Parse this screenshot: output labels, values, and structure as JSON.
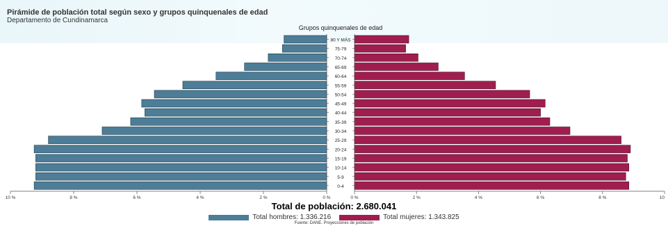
{
  "title": "Pirámide de población total según sexo y grupos quinquenales de edad",
  "subtitle": "Departamento de Cundinamarca",
  "total_label": "Total de población: 2.680.041",
  "legend": {
    "men": "Total hombres: 1.336.216",
    "women": "Total mujeres: 1.343.825"
  },
  "source": "Fuente: DANE. Proyecciones de población",
  "colors": {
    "men": "#4d7d97",
    "women": "#a01e4f"
  },
  "chart_data": {
    "type": "bar",
    "orientation": "horizontal-pyramid",
    "category_axis_title": "Grupos quinquenales de edad",
    "categories": [
      "80 Y MÁS",
      "75-79",
      "70-74",
      "65-69",
      "60-64",
      "55-59",
      "50-54",
      "45-49",
      "40-44",
      "35-39",
      "30-34",
      "25-29",
      "20-24",
      "15-19",
      "10-14",
      "5-9",
      "0-4"
    ],
    "series": [
      {
        "name": "Total hombres: 1.336.216",
        "side": "left",
        "values": [
          1.35,
          1.4,
          1.85,
          2.6,
          3.5,
          4.55,
          5.45,
          5.85,
          5.75,
          6.2,
          7.1,
          8.8,
          9.25,
          9.2,
          9.2,
          9.2,
          9.25
        ]
      },
      {
        "name": "Total mujeres: 1.343.825",
        "side": "right",
        "values": [
          1.75,
          1.65,
          2.05,
          2.7,
          3.55,
          4.55,
          5.65,
          6.15,
          6.0,
          6.3,
          6.95,
          8.6,
          8.9,
          8.8,
          8.85,
          8.75,
          8.85
        ]
      }
    ],
    "x_ticks_left": [
      "10 %",
      "8 %",
      "6 %",
      "4 %",
      "2 %",
      "0 %"
    ],
    "x_ticks_right": [
      "0 %",
      "2 %",
      "4 %",
      "6 %",
      "8 %",
      "10"
    ],
    "xlim": [
      0,
      10
    ],
    "unit": "%"
  }
}
